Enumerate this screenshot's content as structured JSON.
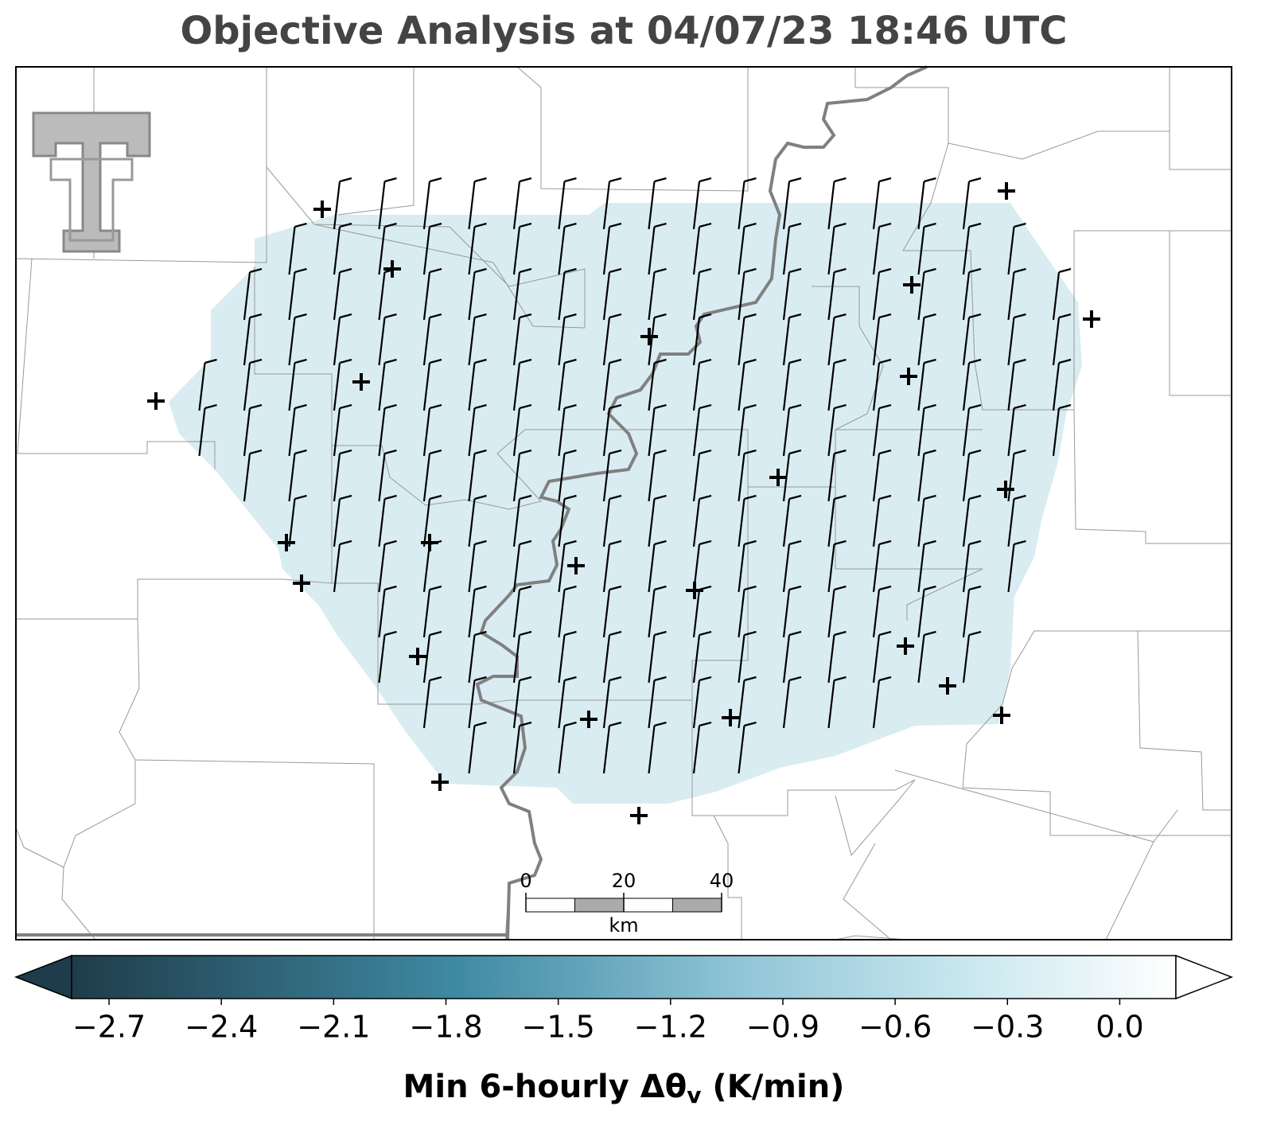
{
  "title": "Objective Analysis at 04/07/23 18:46 UTC",
  "colorbar": {
    "lim": [
      -2.8,
      0.15
    ],
    "ticks": [
      {
        "value": -2.7,
        "label": "−2.7"
      },
      {
        "value": -2.4,
        "label": "−2.4"
      },
      {
        "value": -2.1,
        "label": "−2.1"
      },
      {
        "value": -1.8,
        "label": "−1.8"
      },
      {
        "value": -1.5,
        "label": "−1.5"
      },
      {
        "value": -1.2,
        "label": "−1.2"
      },
      {
        "value": -0.9,
        "label": "−0.9"
      },
      {
        "value": -0.6,
        "label": "−0.6"
      },
      {
        "value": -0.3,
        "label": "−0.3"
      },
      {
        "value": 0.0,
        "label": "0.0"
      }
    ],
    "label": [
      "Min 6-hourly Δθ",
      "v",
      " (K/min)"
    ]
  },
  "scale_bar": {
    "ticks": [
      0,
      20,
      40
    ],
    "unit": "km"
  }
}
